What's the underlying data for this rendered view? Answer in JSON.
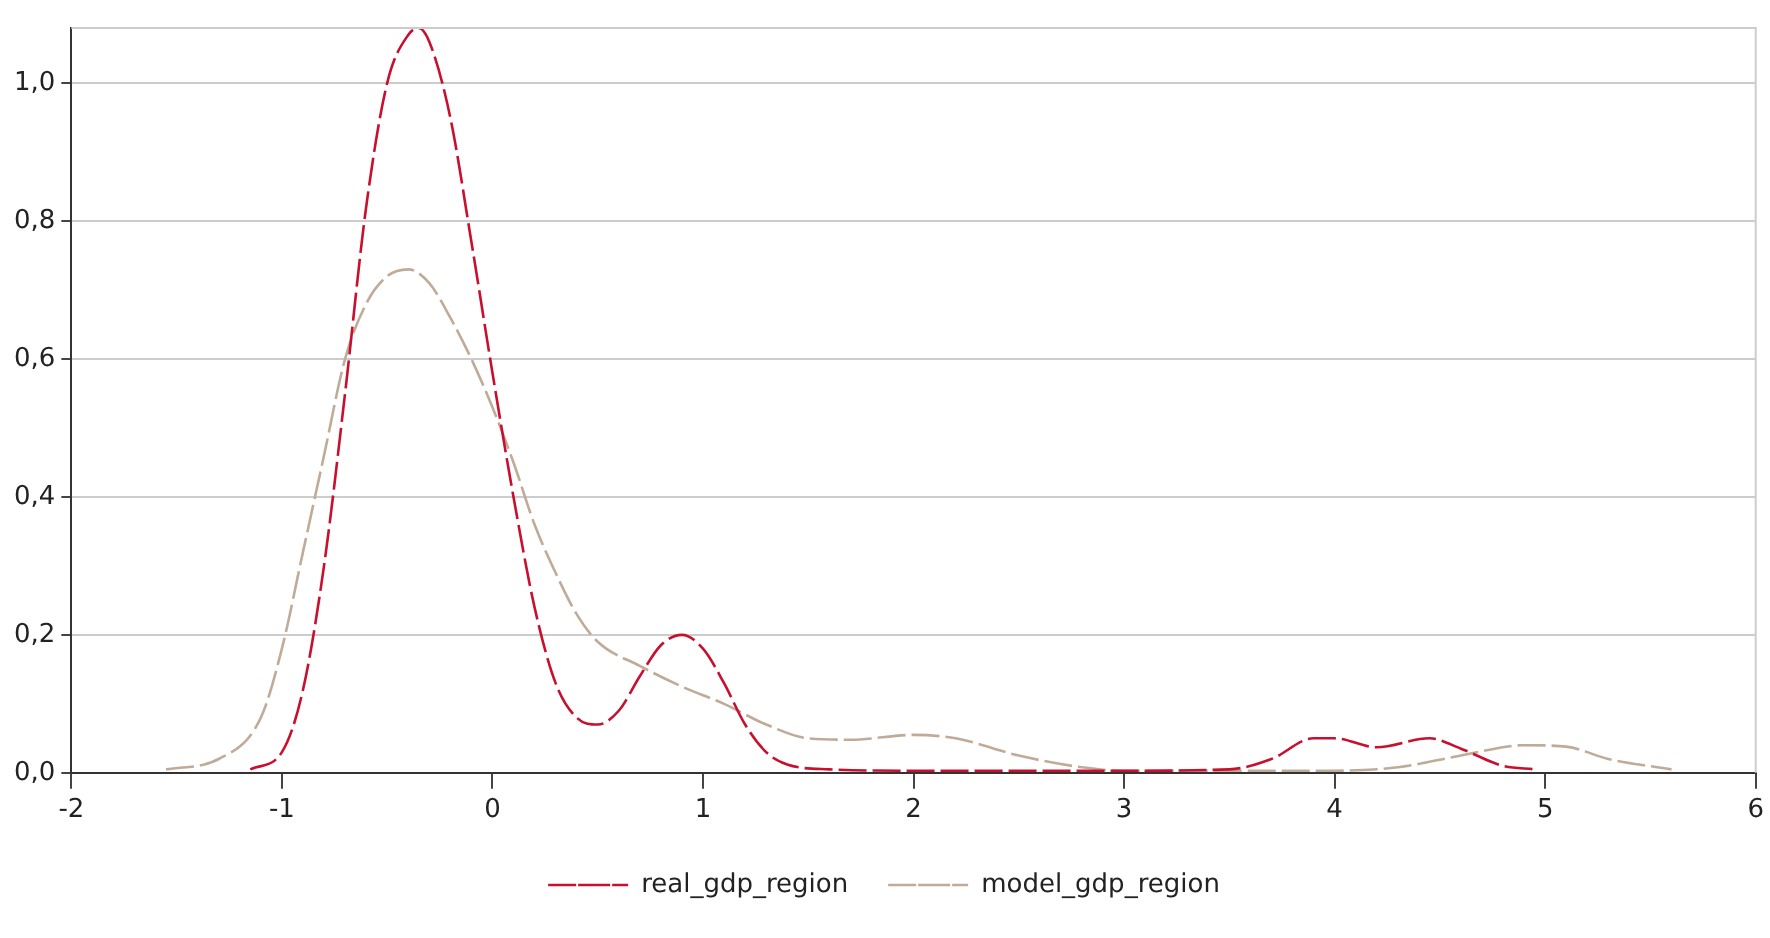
{
  "chart_data": {
    "type": "line",
    "xlim": [
      -2,
      6
    ],
    "xticks": [
      -2,
      -1,
      0,
      1,
      2,
      3,
      4,
      5,
      6
    ],
    "ylim": [
      0,
      1.08
    ],
    "yticks": [
      {
        "value": 0,
        "label": "0,0"
      },
      {
        "value": 0.2,
        "label": "0,2"
      },
      {
        "value": 0.4,
        "label": "0,4"
      },
      {
        "value": 0.6,
        "label": "0,6"
      },
      {
        "value": 0.8,
        "label": "0,8"
      },
      {
        "value": 1,
        "label": "1,0"
      }
    ],
    "grid": "y",
    "legend": "bottom",
    "line_style": "dashed",
    "marker": "none",
    "series": [
      {
        "name": "real_gdp_region",
        "color": "#c8102e",
        "x": [
          -1.15,
          -1.0,
          -0.9,
          -0.8,
          -0.7,
          -0.6,
          -0.5,
          -0.4,
          -0.35,
          -0.3,
          -0.2,
          -0.1,
          0,
          0.1,
          0.2,
          0.3,
          0.4,
          0.5,
          0.6,
          0.7,
          0.8,
          0.9,
          1.0,
          1.1,
          1.2,
          1.3,
          1.4,
          1.6,
          2.0,
          3.0,
          3.5,
          3.7,
          3.9,
          4.0,
          4.2,
          4.45,
          4.6,
          4.8,
          4.95
        ],
        "values": [
          0.005,
          0.03,
          0.12,
          0.3,
          0.55,
          0.82,
          1.0,
          1.07,
          1.08,
          1.06,
          0.95,
          0.77,
          0.58,
          0.4,
          0.24,
          0.13,
          0.08,
          0.07,
          0.09,
          0.14,
          0.185,
          0.2,
          0.18,
          0.13,
          0.07,
          0.03,
          0.012,
          0.005,
          0.003,
          0.003,
          0.005,
          0.02,
          0.05,
          0.05,
          0.037,
          0.05,
          0.035,
          0.01,
          0.005
        ]
      },
      {
        "name": "model_gdp_region",
        "color": "#c0ab99",
        "x": [
          -1.55,
          -1.3,
          -1.1,
          -1.0,
          -0.9,
          -0.8,
          -0.7,
          -0.6,
          -0.5,
          -0.4,
          -0.3,
          -0.2,
          -0.1,
          0,
          0.1,
          0.2,
          0.3,
          0.4,
          0.5,
          0.7,
          0.9,
          1.1,
          1.3,
          1.5,
          1.7,
          2.0,
          2.2,
          2.5,
          2.8,
          3.0,
          3.5,
          4.0,
          4.3,
          4.6,
          4.9,
          5.1,
          5.3,
          5.6
        ],
        "values": [
          0.005,
          0.02,
          0.08,
          0.18,
          0.32,
          0.46,
          0.6,
          0.68,
          0.72,
          0.73,
          0.71,
          0.66,
          0.6,
          0.53,
          0.45,
          0.36,
          0.29,
          0.23,
          0.19,
          0.155,
          0.125,
          0.1,
          0.07,
          0.05,
          0.048,
          0.055,
          0.05,
          0.025,
          0.008,
          0.003,
          0.003,
          0.003,
          0.008,
          0.025,
          0.04,
          0.038,
          0.02,
          0.005
        ]
      }
    ]
  }
}
